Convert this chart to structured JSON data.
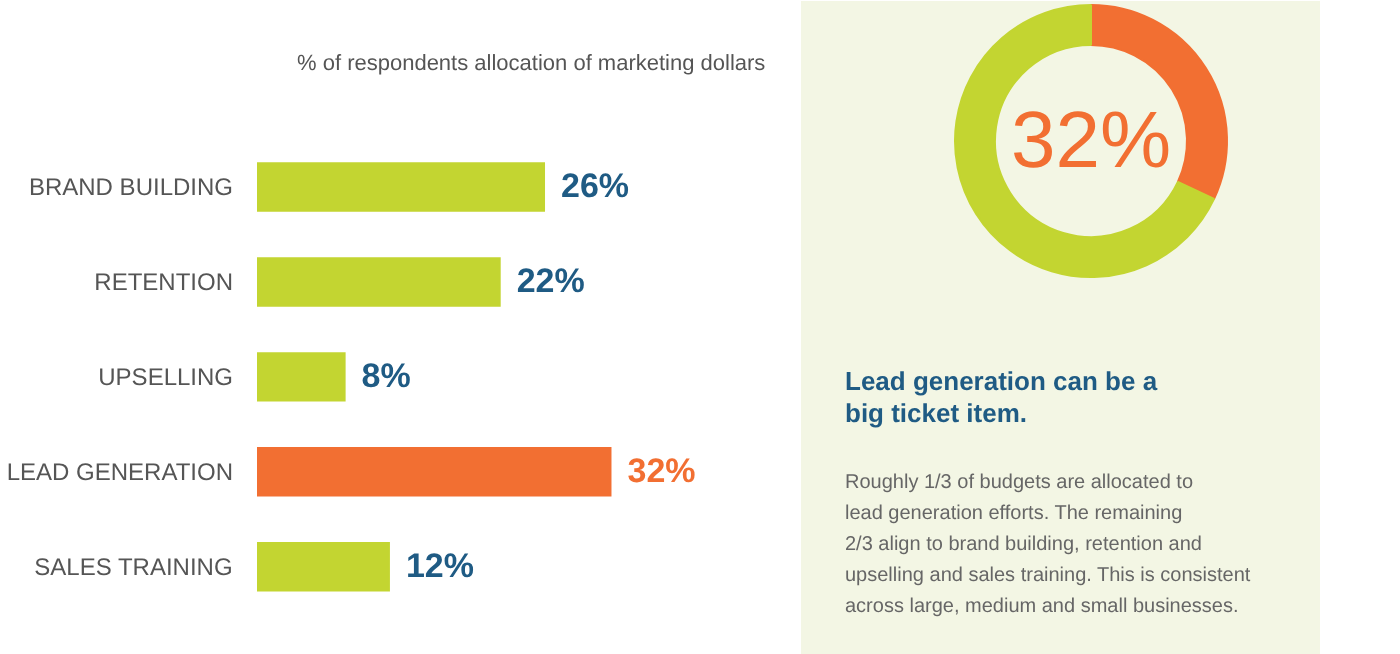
{
  "chart_data": [
    {
      "type": "bar",
      "orientation": "horizontal",
      "title": "% of respondents allocation of marketing dollars",
      "categories": [
        "BRAND BUILDING",
        "RETENTION",
        "UPSELLING",
        "LEAD GENERATION",
        "SALES TRAINING"
      ],
      "values": [
        26,
        22,
        8,
        32,
        12
      ],
      "colors": [
        "#c3d531",
        "#c3d531",
        "#c3d531",
        "#f26f32",
        "#c3d531"
      ],
      "value_labels": [
        "26%",
        "22%",
        "8%",
        "32%",
        "12%"
      ]
    },
    {
      "type": "donut",
      "categories": [
        null,
        null
      ],
      "values": [
        32,
        68
      ],
      "colors": [
        "#f26f32",
        "#c3d531"
      ],
      "annotations": [
        "32%",
        "Lead generation can be a\nbig ticket item.",
        "Roughly 1/3 of budgets are allocated to\nlead generation efforts. The remaining\n2/3 align to brand building, retention and\nupselling and sales training. This is consistent\nacross large, medium and small businesses."
      ]
    }
  ]
}
